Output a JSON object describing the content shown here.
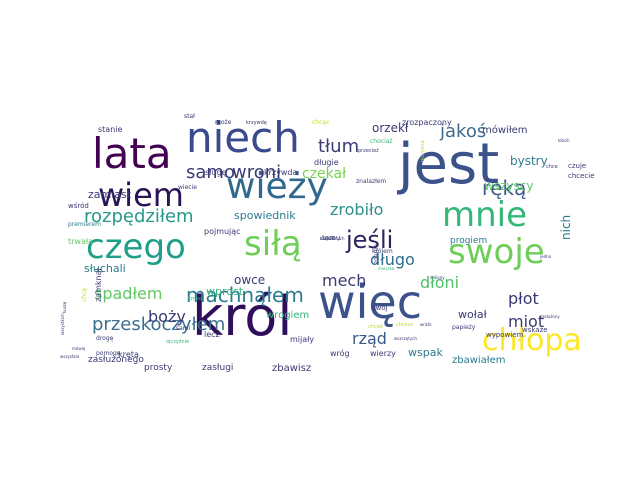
{
  "words": [
    {
      "text": "jest",
      "size": 56,
      "color": "#3b528b"
    },
    {
      "text": "król",
      "size": 54,
      "color": "#2f0e5c"
    },
    {
      "text": "więc",
      "size": 46,
      "color": "#3b528b"
    },
    {
      "text": "lata",
      "size": 42,
      "color": "#440154"
    },
    {
      "text": "niech",
      "size": 42,
      "color": "#3a4a8c"
    },
    {
      "text": "wieży",
      "size": 36,
      "color": "#31688e"
    },
    {
      "text": "czego",
      "size": 34,
      "color": "#1f9e89"
    },
    {
      "text": "siłą",
      "size": 34,
      "color": "#6ece58"
    },
    {
      "text": "mnie",
      "size": 34,
      "color": "#35b779"
    },
    {
      "text": "swoje",
      "size": 34,
      "color": "#6ece58"
    },
    {
      "text": "wiem",
      "size": 32,
      "color": "#2a1458"
    },
    {
      "text": "chłopa",
      "size": 30,
      "color": "#fde725"
    },
    {
      "text": "jeśli",
      "size": 24,
      "color": "#30215f"
    },
    {
      "text": "machnąłem",
      "size": 20,
      "color": "#2a7c8e"
    },
    {
      "text": "rozpędziłem",
      "size": 18,
      "color": "#27998a"
    },
    {
      "text": "ręką",
      "size": 20,
      "color": "#3b5a8c"
    },
    {
      "text": "przeskoczyłem",
      "size": 18,
      "color": "#3c6f8f"
    },
    {
      "text": "jakoś",
      "size": 18,
      "color": "#3e6b8e"
    },
    {
      "text": "samo",
      "size": 18,
      "color": "#3a3a75"
    },
    {
      "text": "wroni",
      "size": 18,
      "color": "#3a3a75"
    },
    {
      "text": "tłum",
      "size": 18,
      "color": "#3a3a75"
    },
    {
      "text": "zrobiło",
      "size": 16,
      "color": "#2f8f8b"
    },
    {
      "text": "długo",
      "size": 16,
      "color": "#2f6e8e"
    },
    {
      "text": "mech",
      "size": 16,
      "color": "#3a3a75"
    },
    {
      "text": "dłoni",
      "size": 16,
      "color": "#4fc16b"
    },
    {
      "text": "płot",
      "size": 16,
      "color": "#3a3a75"
    },
    {
      "text": "miot",
      "size": 16,
      "color": "#3a3a75"
    },
    {
      "text": "rząd",
      "size": 16,
      "color": "#3a5a8c"
    },
    {
      "text": "spadłem",
      "size": 16,
      "color": "#5ec962"
    },
    {
      "text": "boży",
      "size": 16,
      "color": "#3a3a75"
    },
    {
      "text": "czekał",
      "size": 14,
      "color": "#7ad151"
    },
    {
      "text": "bystry",
      "size": 12,
      "color": "#2a7c8e"
    },
    {
      "text": "wszyscy",
      "size": 12,
      "color": "#5ec962"
    },
    {
      "text": "orzekł",
      "size": 12,
      "color": "#3a3a75"
    },
    {
      "text": "mówiłem",
      "size": 10,
      "color": "#3a3a75"
    },
    {
      "text": "zamiast",
      "size": 11,
      "color": "#3a3a75"
    },
    {
      "text": "słuchali",
      "size": 11,
      "color": "#2a7c8e"
    },
    {
      "text": "spowiednik",
      "size": 11,
      "color": "#2a7c8e"
    },
    {
      "text": "owce",
      "size": 12,
      "color": "#3a3a75"
    },
    {
      "text": "wołał",
      "size": 11,
      "color": "#3a3a75"
    },
    {
      "text": "wspak",
      "size": 11,
      "color": "#2a7c8e"
    },
    {
      "text": "zbawiałem",
      "size": 10,
      "color": "#2a7c8e"
    },
    {
      "text": "wprost",
      "size": 11,
      "color": "#35b779"
    },
    {
      "text": "wrogiem",
      "size": 10,
      "color": "#35b779"
    },
    {
      "text": "zbawisz",
      "size": 10,
      "color": "#3a3a75"
    },
    {
      "text": "zasłużonego",
      "size": 9,
      "color": "#3a3a75"
    },
    {
      "text": "prosty",
      "size": 9,
      "color": "#3a3a75"
    },
    {
      "text": "zasługi",
      "size": 9,
      "color": "#3a3a75"
    },
    {
      "text": "kręta",
      "size": 8,
      "color": "#3a3a75"
    },
    {
      "text": "stanie",
      "size": 8,
      "color": "#3a3a75"
    },
    {
      "text": "zamknął",
      "size": 8,
      "color": "#3a3a75"
    },
    {
      "text": "nich",
      "size": 12,
      "color": "#2a7c8e"
    },
    {
      "text": "progiem",
      "size": 9,
      "color": "#2a7c8e"
    },
    {
      "text": "zrozpaczony",
      "size": 8,
      "color": "#3a3a75"
    },
    {
      "text": "długie",
      "size": 8,
      "color": "#3a3a75"
    },
    {
      "text": "pojmując",
      "size": 8,
      "color": "#3a3a75"
    },
    {
      "text": "sługę",
      "size": 8,
      "color": "#3a3a75"
    },
    {
      "text": "krzywda",
      "size": 8,
      "color": "#3a3a75"
    },
    {
      "text": "lecz",
      "size": 8,
      "color": "#3a3a75"
    },
    {
      "text": "mijały",
      "size": 8,
      "color": "#3a3a75"
    },
    {
      "text": "wróg",
      "size": 8,
      "color": "#3a3a75"
    },
    {
      "text": "wierzy",
      "size": 8,
      "color": "#3a3a75"
    },
    {
      "text": "wypowiem",
      "size": 7,
      "color": "#3a3a75"
    },
    {
      "text": "wskaże",
      "size": 7,
      "color": "#3a3a75"
    },
    {
      "text": "czuje",
      "size": 7,
      "color": "#3a3a75"
    },
    {
      "text": "chcecie",
      "size": 7,
      "color": "#3a3a75"
    },
    {
      "text": "trwała",
      "size": 8,
      "color": "#5ec962"
    },
    {
      "text": "wśród",
      "size": 7,
      "color": "#3a3a75"
    },
    {
      "text": "pomogę",
      "size": 6,
      "color": "#3a3a75"
    },
    {
      "text": "wiecie",
      "size": 6,
      "color": "#3a3a75"
    },
    {
      "text": "papieży",
      "size": 6,
      "color": "#3a3a75"
    },
    {
      "text": "znalazłem",
      "size": 6,
      "color": "#3a3a75"
    },
    {
      "text": "temu",
      "size": 7,
      "color": "#3a3a75"
    },
    {
      "text": "swój",
      "size": 7,
      "color": "#3a3a75"
    },
    {
      "text": "królem",
      "size": 6,
      "color": "#3a3a75"
    },
    {
      "text": "zdanie",
      "size": 6,
      "color": "#3a3a75"
    },
    {
      "text": "drogę",
      "size": 6,
      "color": "#3a3a75"
    },
    {
      "text": "może",
      "size": 6,
      "color": "#3a3a75"
    },
    {
      "text": "sami",
      "size": 6,
      "color": "#3a3a75"
    },
    {
      "text": "chcę",
      "size": 6,
      "color": "#bddf26"
    },
    {
      "text": "chcąc",
      "size": 6,
      "color": "#bddf26"
    },
    {
      "text": "chociaż",
      "size": 6,
      "color": "#35b779"
    },
    {
      "text": "przecież",
      "size": 5,
      "color": "#3a3a75"
    },
    {
      "text": "stał",
      "size": 6,
      "color": "#3a3a75"
    },
    {
      "text": "krzywdę",
      "size": 5,
      "color": "#3a3a75"
    },
    {
      "text": "ojczyzna",
      "size": 5,
      "color": "#bddf26"
    },
    {
      "text": "chce",
      "size": 5,
      "color": "#3a3a75"
    },
    {
      "text": "premierem",
      "size": 6,
      "color": "#2a7c8e"
    },
    {
      "text": "ojczyźnie",
      "size": 5,
      "color": "#35b779"
    },
    {
      "text": "kmieć",
      "size": 5,
      "color": "#35b779"
    },
    {
      "text": "chciał",
      "size": 5,
      "color": "#bddf26"
    },
    {
      "text": "wszystkie",
      "size": 4,
      "color": "#3a3a75"
    },
    {
      "text": "mówię",
      "size": 4,
      "color": "#3a3a75"
    },
    {
      "text": "wszystkich",
      "size": 4,
      "color": "#3a3a75"
    },
    {
      "text": "zasłużony",
      "size": 4,
      "color": "#3a3a75"
    },
    {
      "text": "wszczętych",
      "size": 4,
      "color": "#3a3a75"
    },
    {
      "text": "chcesz",
      "size": 5,
      "color": "#bddf26"
    },
    {
      "text": "kłócili",
      "size": 4,
      "color": "#3a3a75"
    },
    {
      "text": "jedno",
      "size": 4,
      "color": "#3a3a75"
    },
    {
      "text": "miliony",
      "size": 4,
      "color": "#3a3a75"
    },
    {
      "text": "mieszka",
      "size": 4,
      "color": "#35b779"
    },
    {
      "text": "wróżk",
      "size": 4,
      "color": "#3a3a75"
    },
    {
      "text": "kuszę",
      "size": 4,
      "color": "#3a3a75"
    },
    {
      "text": "krzywd",
      "size": 4,
      "color": "#3a3a75"
    },
    {
      "text": "zasłużonych",
      "size": 4,
      "color": "#3a3a75"
    }
  ]
}
